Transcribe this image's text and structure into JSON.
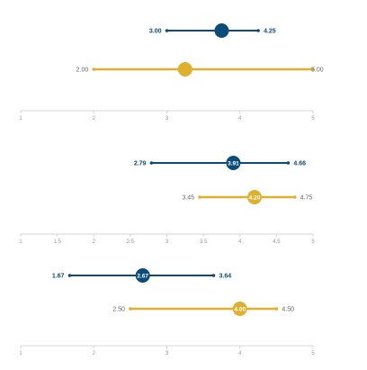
{
  "colors": {
    "blue": "#0b4c7a",
    "gold": "#dfb02d",
    "axis": "#d4d4d4",
    "tick_text": "#999999"
  },
  "chart_data": [
    {
      "type": "range-dot",
      "xlim": [
        1,
        5
      ],
      "ticks": [
        "1",
        "2",
        "3",
        "4",
        "5"
      ],
      "series": [
        {
          "color": "blue",
          "low": 3.0,
          "high": 4.25,
          "mean": 3.75,
          "low_label": "3.00",
          "high_label": "4.25",
          "mean_label": "",
          "bold": true
        },
        {
          "color": "gold",
          "low": 2.0,
          "high": 5.0,
          "mean": 3.25,
          "low_label": "2.00",
          "high_label": "5.00",
          "mean_label": "",
          "bold": false
        }
      ]
    },
    {
      "type": "range-dot",
      "xlim": [
        1,
        5
      ],
      "ticks": [
        "1",
        "1.5",
        "2",
        "2.5",
        "3",
        "3.5",
        "4",
        "4.5",
        "5"
      ],
      "series": [
        {
          "color": "blue",
          "low": 2.79,
          "high": 4.66,
          "mean": 3.91,
          "low_label": "2.79",
          "high_label": "4.66",
          "mean_label": "3.91",
          "bold": true
        },
        {
          "color": "gold",
          "low": 3.45,
          "high": 4.75,
          "mean": 4.2,
          "low_label": "3.45",
          "high_label": "4.75",
          "mean_label": "4.20",
          "bold": false
        }
      ]
    },
    {
      "type": "range-dot",
      "xlim": [
        1,
        5
      ],
      "ticks": [
        "1",
        "2",
        "3",
        "4",
        "5"
      ],
      "series": [
        {
          "color": "blue",
          "low": 1.67,
          "high": 3.64,
          "mean": 2.67,
          "low_label": "1.67",
          "high_label": "3.64",
          "mean_label": "2.67",
          "bold": true
        },
        {
          "color": "gold",
          "low": 2.5,
          "high": 4.5,
          "mean": 4.0,
          "low_label": "2.50",
          "high_label": "4.50",
          "mean_label": "4.00",
          "bold": false
        }
      ]
    }
  ]
}
